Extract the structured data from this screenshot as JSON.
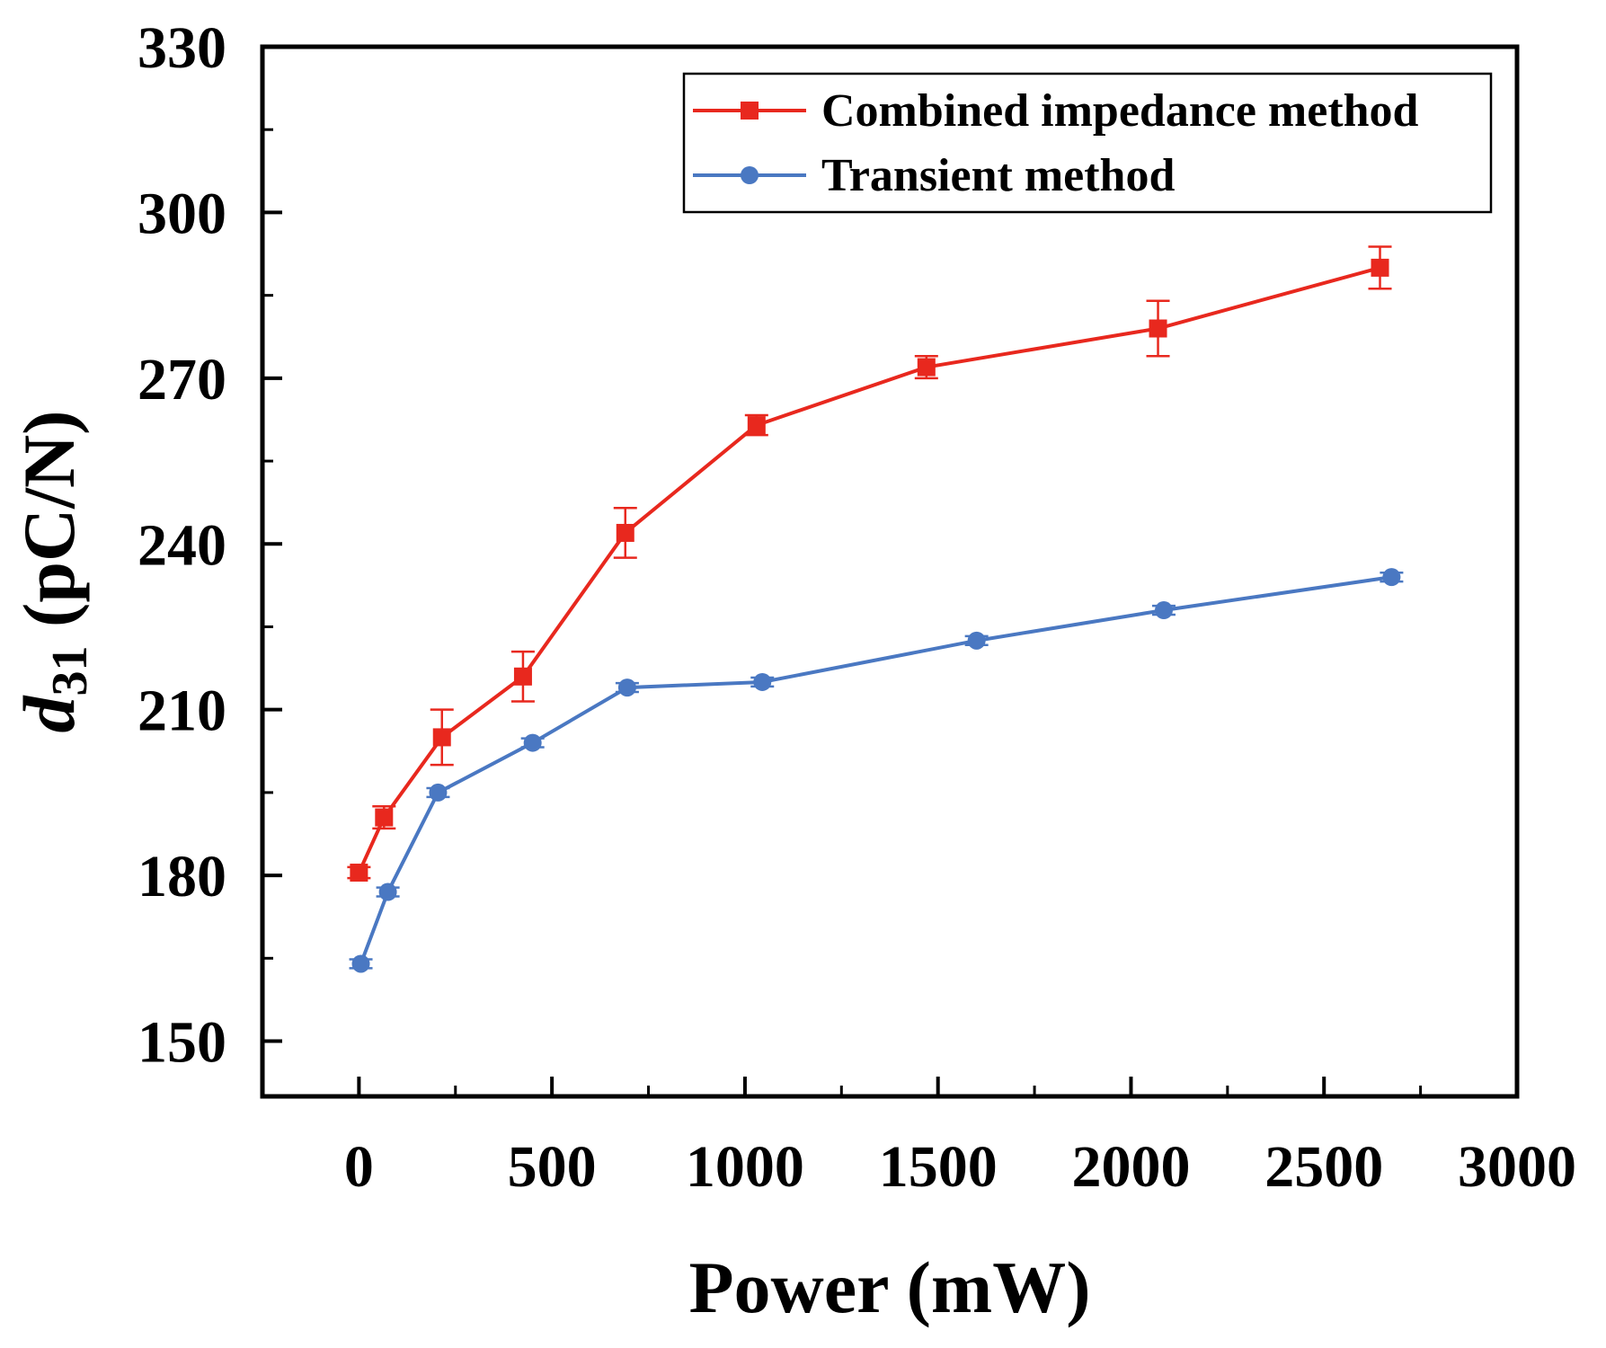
{
  "chart_data": {
    "type": "line",
    "title": "",
    "xlabel": "Power (mW)",
    "ylabel": {
      "main": "d",
      "subscript": "31",
      "unit": " (pC/N)"
    },
    "xlim": [
      -250,
      3000
    ],
    "ylim": [
      140,
      330
    ],
    "x_ticks": [
      0,
      500,
      1000,
      1500,
      2000,
      2500,
      3000
    ],
    "y_ticks": [
      150,
      180,
      210,
      240,
      270,
      300,
      330
    ],
    "grid": false,
    "legend_position": "top-right",
    "series": [
      {
        "name": "Combined impedance method",
        "color": "#e8281e",
        "marker": "square",
        "x": [
          0,
          65,
          215,
          425,
          690,
          1030,
          1470,
          2070,
          2645
        ],
        "y": [
          180.5,
          190.5,
          205,
          216,
          242,
          261.5,
          272,
          279,
          290
        ],
        "error": [
          1.0,
          2.0,
          5.0,
          4.5,
          4.5,
          1.8,
          2.0,
          5.0,
          3.8
        ]
      },
      {
        "name": "Transient method",
        "color": "#4a78c2",
        "marker": "circle",
        "x": [
          5,
          75,
          205,
          450,
          695,
          1045,
          1600,
          2085,
          2675
        ],
        "y": [
          164,
          177,
          195,
          204,
          214,
          215,
          222.5,
          228,
          234
        ],
        "error": [
          0.8,
          0.8,
          0.8,
          0.8,
          0.8,
          0.8,
          0.8,
          0.8,
          0.8
        ]
      }
    ]
  }
}
